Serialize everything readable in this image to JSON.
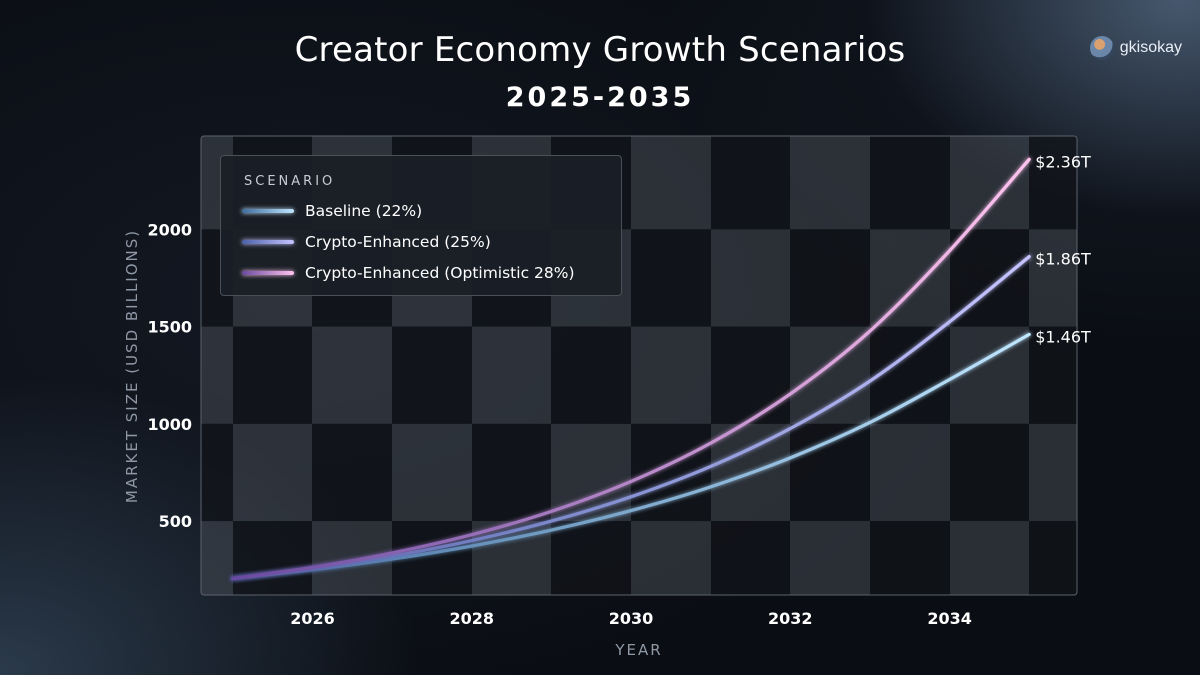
{
  "header": {
    "title": "Creator Economy Growth Scenarios",
    "subtitle": "2025-2035",
    "brand": "gkisokay"
  },
  "colors": {
    "background": "#0a0d13",
    "baseline_start": "#3f6d9c",
    "baseline_end": "#bfe6ff",
    "enhanced_start": "#4b62a8",
    "enhanced_end": "#c6c4ff",
    "optimistic_start": "#6a4aa0",
    "optimistic_end": "#ffc3ef"
  },
  "chart_data": {
    "type": "line",
    "title": "Creator Economy Growth Scenarios",
    "subtitle": "2025-2035",
    "xlabel": "YEAR",
    "ylabel": "MARKET SIZE (USD BILLIONS)",
    "xlim": [
      2024.6,
      2035.6
    ],
    "ylim": [
      120,
      2480
    ],
    "x_ticks": [
      2026,
      2028,
      2030,
      2032,
      2034
    ],
    "y_ticks": [
      500,
      1000,
      1500,
      2000
    ],
    "grid": "checkered background",
    "legend": {
      "title": "SCENARIO",
      "placement": "top-left"
    },
    "x": [
      2025,
      2026,
      2027,
      2028,
      2029,
      2030,
      2031,
      2032,
      2033,
      2034,
      2035
    ],
    "series": [
      {
        "name": "Baseline (22%)",
        "values": [
          205,
          250,
          305,
          372,
          454,
          554,
          676,
          825,
          1007,
          1228,
          1460
        ],
        "end_label": "$1.46T"
      },
      {
        "name": "Crypto-Enhanced (25%)",
        "values": [
          205,
          256,
          320,
          400,
          500,
          625,
          781,
          976,
          1220,
          1525,
          1860
        ],
        "end_label": "$1.86T"
      },
      {
        "name": "Crypto-Enhanced (Optimistic 28%)",
        "values": [
          205,
          262,
          336,
          430,
          550,
          704,
          901,
          1154,
          1477,
          1890,
          2360
        ],
        "end_label": "$2.36T"
      }
    ]
  }
}
